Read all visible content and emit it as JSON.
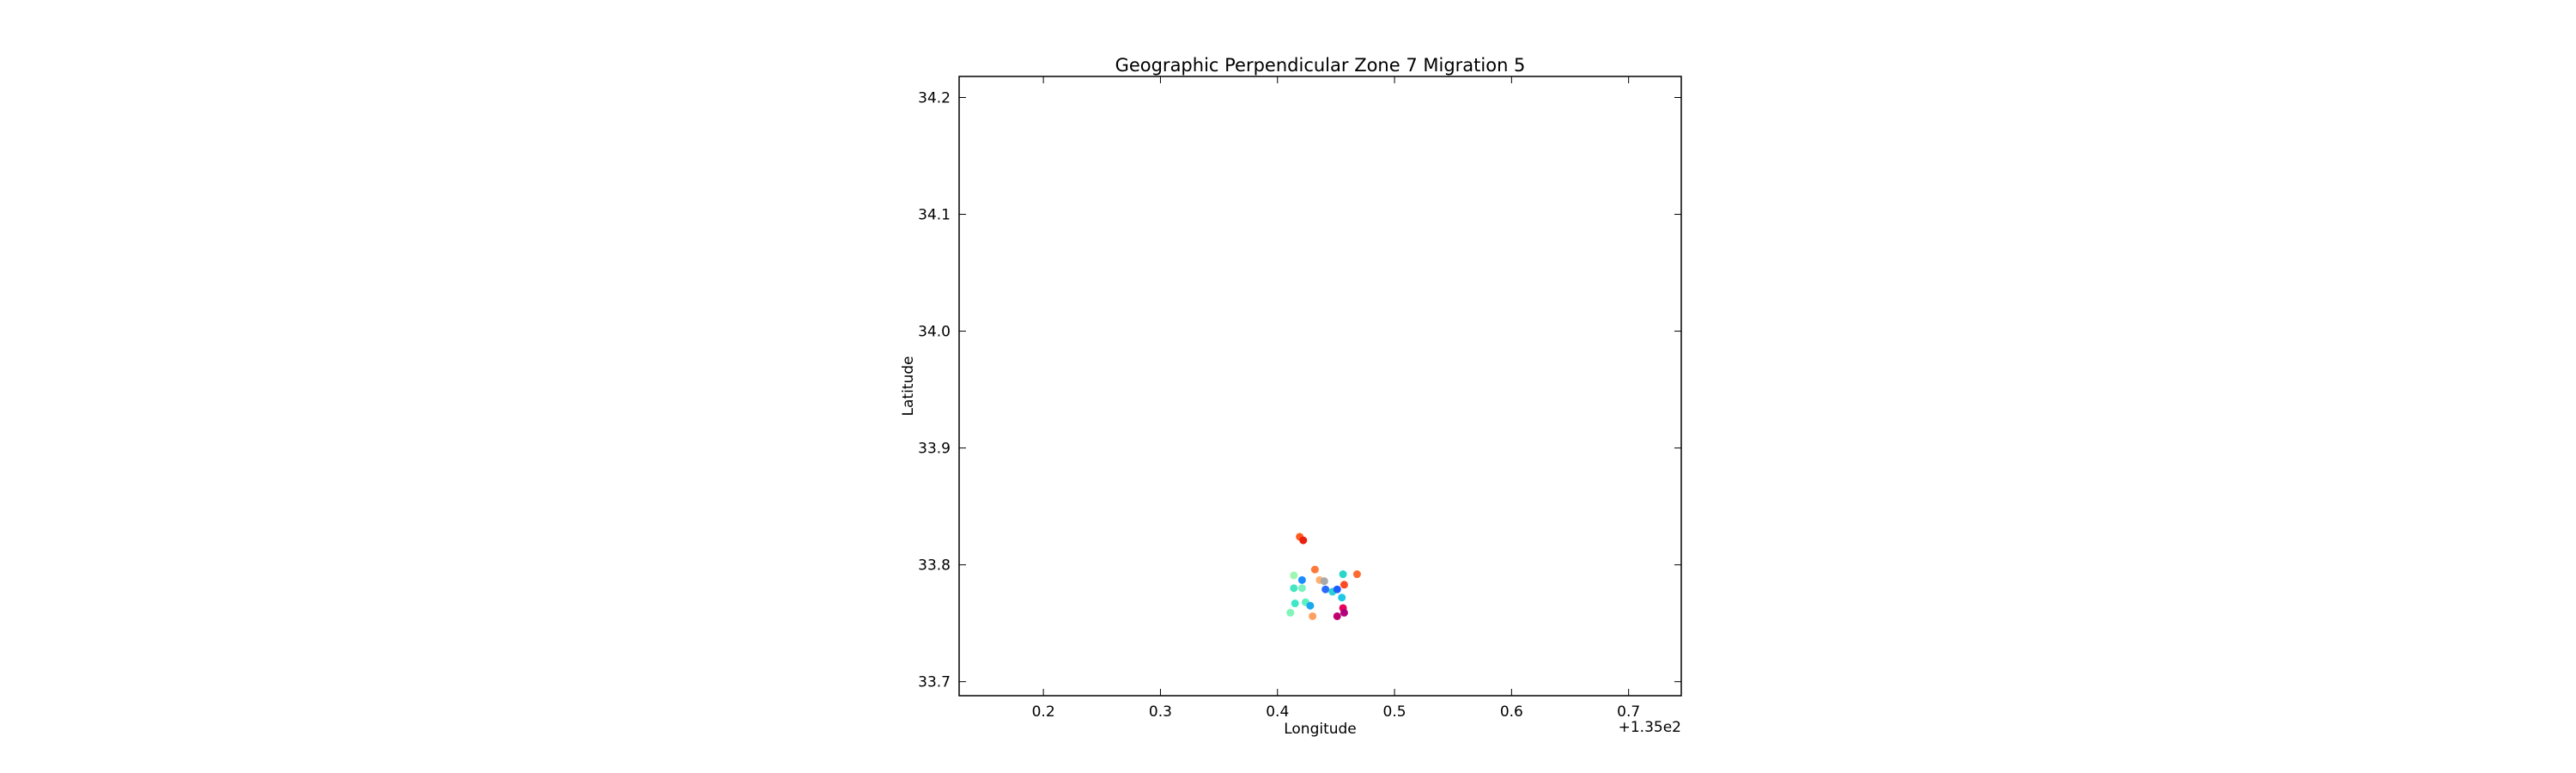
{
  "chart_data": {
    "type": "scatter",
    "title": "Geographic Perpendicular Zone 7 Migration 5",
    "xlabel": "Longitude",
    "ylabel": "Latitude",
    "x_offset_label": "+1.35e2",
    "xlim": [
      0.128,
      0.745
    ],
    "ylim": [
      33.688,
      34.218
    ],
    "x_ticks": [
      0.2,
      0.3,
      0.4,
      0.5,
      0.6,
      0.7
    ],
    "x_tick_labels": [
      "0.2",
      "0.3",
      "0.4",
      "0.5",
      "0.6",
      "0.7"
    ],
    "y_ticks": [
      33.7,
      33.8,
      33.9,
      34.0,
      34.1,
      34.2
    ],
    "y_tick_labels": [
      "33.7",
      "33.8",
      "33.9",
      "34.0",
      "34.1",
      "34.2"
    ],
    "grid": false,
    "points": [
      {
        "x": 0.419,
        "y": 33.824,
        "color": "#ff5a1f"
      },
      {
        "x": 0.422,
        "y": 33.821,
        "color": "#e8200c"
      },
      {
        "x": 0.432,
        "y": 33.796,
        "color": "#ff7a3a"
      },
      {
        "x": 0.468,
        "y": 33.792,
        "color": "#ff6a30"
      },
      {
        "x": 0.414,
        "y": 33.791,
        "color": "#9cf7b0"
      },
      {
        "x": 0.456,
        "y": 33.792,
        "color": "#2ad6c8"
      },
      {
        "x": 0.421,
        "y": 33.787,
        "color": "#1a8cff"
      },
      {
        "x": 0.436,
        "y": 33.787,
        "color": "#ffb070"
      },
      {
        "x": 0.44,
        "y": 33.786,
        "color": "#a8a8a8"
      },
      {
        "x": 0.457,
        "y": 33.783,
        "color": "#ff4a22"
      },
      {
        "x": 0.414,
        "y": 33.78,
        "color": "#46e6c0"
      },
      {
        "x": 0.421,
        "y": 33.78,
        "color": "#7af3c0"
      },
      {
        "x": 0.441,
        "y": 33.779,
        "color": "#2a6bff"
      },
      {
        "x": 0.447,
        "y": 33.777,
        "color": "#2ad0d8"
      },
      {
        "x": 0.451,
        "y": 33.779,
        "color": "#1e5cff"
      },
      {
        "x": 0.455,
        "y": 33.772,
        "color": "#1ec8e6"
      },
      {
        "x": 0.415,
        "y": 33.767,
        "color": "#3de8c8"
      },
      {
        "x": 0.424,
        "y": 33.768,
        "color": "#5ff0c0"
      },
      {
        "x": 0.428,
        "y": 33.765,
        "color": "#1aa8f0"
      },
      {
        "x": 0.411,
        "y": 33.759,
        "color": "#80f5b8"
      },
      {
        "x": 0.43,
        "y": 33.756,
        "color": "#ffa060"
      },
      {
        "x": 0.456,
        "y": 33.763,
        "color": "#e8005a"
      },
      {
        "x": 0.457,
        "y": 33.759,
        "color": "#b0007a"
      },
      {
        "x": 0.451,
        "y": 33.756,
        "color": "#c0006e"
      }
    ]
  }
}
